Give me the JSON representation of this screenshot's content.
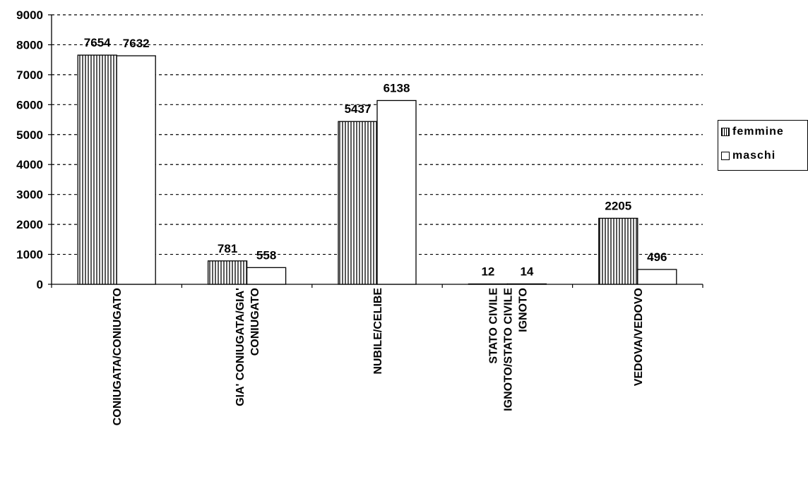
{
  "chart_data": {
    "type": "bar",
    "categories": [
      [
        "CONIUGATA/CONIUGATO"
      ],
      [
        "GIA' CONIUGATA/GIA'",
        "CONIUGATO"
      ],
      [
        "NUBILE/CELIBE"
      ],
      [
        "STATO CIVILE",
        "IGNOTO/STATO CIVILE",
        "IGNOTO"
      ],
      [
        "VEDOVA/VEDOVO"
      ]
    ],
    "series": [
      {
        "name": "femmine",
        "values": [
          7654,
          781,
          5437,
          12,
          2205
        ],
        "pattern": "vertical-hatch"
      },
      {
        "name": "maschi",
        "values": [
          7632,
          558,
          6138,
          14,
          496
        ],
        "pattern": "white"
      }
    ],
    "yticks": [
      "0",
      "1000",
      "2000",
      "3000",
      "4000",
      "5000",
      "6000",
      "7000",
      "8000",
      "9000"
    ],
    "ylim": [
      0,
      9000
    ],
    "grid": "dashed-horizontal",
    "legend_position": "right",
    "data_labels": true,
    "colors": {
      "bar_stroke": "#000000",
      "bar_fill": "#ffffff",
      "hatch": "#000000"
    }
  }
}
